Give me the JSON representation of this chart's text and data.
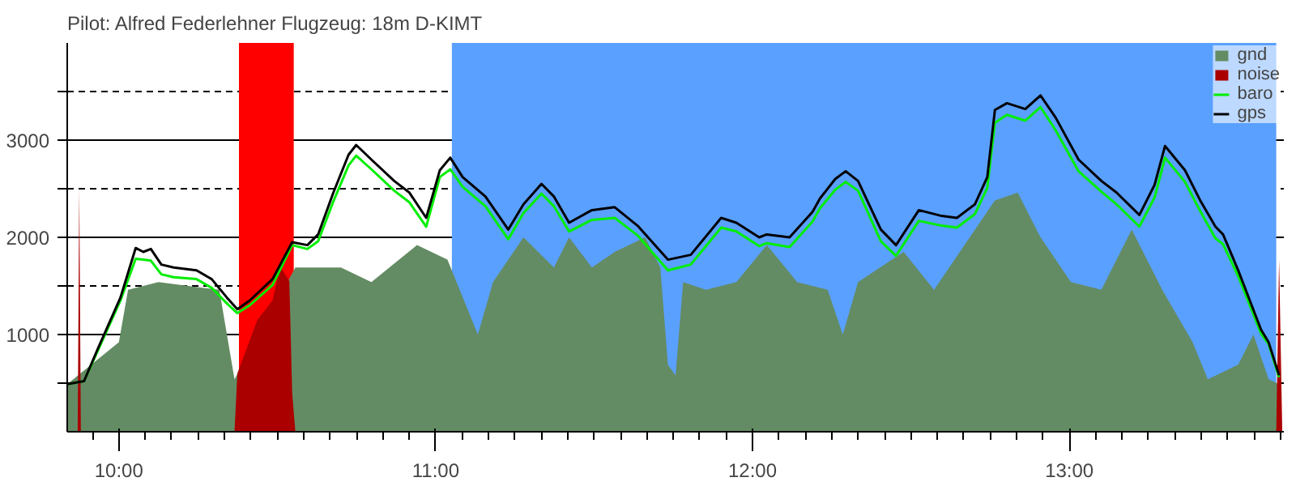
{
  "chart_data": {
    "type": "line",
    "title": "Pilot: Alfred Federlehner Flugzeug: 18m D-KIMT",
    "x": [
      9.837,
      9.89,
      9.933,
      10.005,
      10.053,
      10.077,
      10.101,
      10.134,
      10.173,
      10.245,
      10.293,
      10.341,
      10.374,
      10.413,
      10.485,
      10.547,
      10.595,
      10.629,
      10.677,
      10.725,
      10.749,
      10.797,
      10.869,
      10.917,
      10.97,
      11.013,
      11.046,
      11.085,
      11.157,
      11.229,
      11.277,
      11.334,
      11.373,
      11.421,
      11.493,
      11.565,
      11.637,
      11.733,
      11.805,
      11.901,
      11.949,
      12.021,
      12.045,
      12.117,
      12.189,
      12.213,
      12.261,
      12.294,
      12.333,
      12.405,
      12.453,
      12.525,
      12.597,
      12.645,
      12.702,
      12.741,
      12.765,
      12.803,
      12.861,
      12.909,
      12.957,
      13.029,
      13.101,
      13.149,
      13.221,
      13.269,
      13.302,
      13.365,
      13.413,
      13.461,
      13.485,
      13.533,
      13.605,
      13.629,
      13.662
    ],
    "series": [
      {
        "name": "gnd",
        "type": "area",
        "color": "#648c64",
        "x": [
          9.837,
          10.0,
          10.029,
          10.125,
          10.317,
          10.365,
          10.389,
          10.557,
          10.701,
          10.797,
          10.941,
          11.037,
          11.133,
          11.181,
          11.277,
          11.373,
          11.421,
          11.493,
          11.565,
          11.661,
          11.709,
          11.733,
          11.757,
          11.781,
          11.853,
          11.949,
          12.045,
          12.141,
          12.237,
          12.285,
          12.333,
          12.477,
          12.573,
          12.669,
          12.765,
          12.837,
          12.909,
          13.005,
          13.101,
          13.197,
          13.293,
          13.389,
          13.437,
          13.533,
          13.581,
          13.629,
          13.662
        ],
        "values": [
          490,
          920,
          1460,
          1540,
          1460,
          540,
          null,
          1690,
          1690,
          1540,
          1920,
          1770,
          1000,
          1540,
          2000,
          1690,
          2000,
          1690,
          1850,
          2000,
          1690,
          690,
          580,
          1540,
          1460,
          1540,
          1920,
          1540,
          1460,
          1000,
          1540,
          1850,
          1460,
          1920,
          2380,
          2460,
          2000,
          1540,
          1460,
          2080,
          1460,
          920,
          540,
          690,
          1000,
          540,
          490
        ]
      },
      {
        "name": "noise",
        "type": "area",
        "color": "#aa0000",
        "x": [
          9.87,
          9.875,
          9.88,
          10.365,
          10.374,
          10.437,
          10.485,
          10.509,
          10.538,
          10.547,
          10.557,
          13.653,
          13.662,
          13.672
        ],
        "values": [
          0,
          2500,
          0,
          0,
          600,
          1150,
          1350,
          1700,
          1550,
          400,
          0,
          0,
          1770,
          0
        ]
      },
      {
        "name": "baro",
        "color": "#00ee00",
        "values": [
          490,
          520,
          830,
          1350,
          1780,
          1770,
          1760,
          1620,
          1590,
          1570,
          1480,
          1320,
          1220,
          1300,
          1510,
          1920,
          1880,
          1960,
          2370,
          2740,
          2840,
          2700,
          2480,
          2360,
          2110,
          2620,
          2700,
          2520,
          2320,
          1980,
          2250,
          2450,
          2320,
          2060,
          2180,
          2200,
          2020,
          1660,
          1720,
          2100,
          2060,
          1910,
          1940,
          1900,
          2160,
          2300,
          2490,
          2570,
          2480,
          1960,
          1810,
          2170,
          2120,
          2100,
          2240,
          2510,
          3180,
          3260,
          3200,
          3340,
          3100,
          2680,
          2470,
          2340,
          2110,
          2410,
          2820,
          2570,
          2270,
          1990,
          1930,
          1600,
          1010,
          900,
          560
        ]
      },
      {
        "name": "gps",
        "color": "#000000",
        "values": [
          490,
          520,
          850,
          1380,
          1890,
          1850,
          1880,
          1720,
          1690,
          1660,
          1570,
          1380,
          1260,
          1350,
          1570,
          1950,
          1920,
          2030,
          2460,
          2850,
          2950,
          2800,
          2580,
          2460,
          2200,
          2690,
          2820,
          2620,
          2420,
          2080,
          2340,
          2550,
          2420,
          2150,
          2280,
          2310,
          2120,
          1770,
          1820,
          2200,
          2150,
          2000,
          2030,
          2000,
          2260,
          2400,
          2600,
          2680,
          2580,
          2080,
          1920,
          2280,
          2220,
          2200,
          2340,
          2620,
          3310,
          3380,
          3320,
          3460,
          3230,
          2800,
          2580,
          2460,
          2230,
          2540,
          2940,
          2690,
          2380,
          2110,
          2030,
          1660,
          1050,
          920,
          580
        ]
      }
    ],
    "bands": [
      {
        "axis": "x",
        "from": 10.379,
        "to": 10.552,
        "color": "#ff0000"
      },
      {
        "axis": "x",
        "from": 11.051,
        "to": 13.653,
        "color": "#5aa0ff"
      }
    ],
    "xlim": [
      9.837,
      13.677
    ],
    "ylim": [
      0,
      4000
    ],
    "xticks": [
      {
        "value": 10,
        "label": "10:00"
      },
      {
        "value": 11,
        "label": "11:00"
      },
      {
        "value": 12,
        "label": "12:00"
      },
      {
        "value": 13,
        "label": "13:00"
      }
    ],
    "yticks": [
      {
        "value": 500,
        "label": null
      },
      1000,
      {
        "value": 1500,
        "label": null
      },
      2000,
      {
        "value": 2500,
        "label": null
      },
      3000,
      {
        "value": 3500,
        "label": null
      }
    ],
    "grid": "y",
    "legend": "top right"
  }
}
